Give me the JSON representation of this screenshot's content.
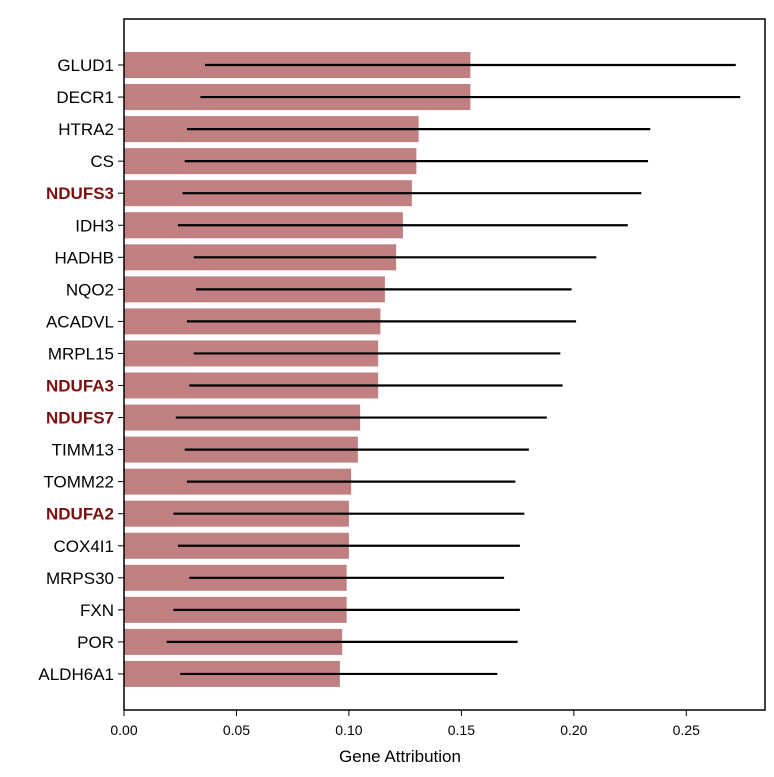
{
  "chart_data": {
    "type": "bar",
    "orientation": "horizontal",
    "title": "",
    "xlabel": "Gene Attribution",
    "ylabel": "",
    "xlim": [
      0,
      0.285
    ],
    "xticks": [
      "0.00",
      "0.05",
      "0.10",
      "0.15",
      "0.20",
      "0.25"
    ],
    "tick_values": [
      0,
      0.05,
      0.1,
      0.15,
      0.2,
      0.25
    ],
    "grid": false,
    "bar_color": "#c07f80",
    "highlight_label_color": "#7a1010",
    "default_label_color": "#000000",
    "bars": [
      {
        "label": "GLUD1",
        "value": 0.154,
        "err_low": 0.036,
        "err_high": 0.272,
        "highlight": false
      },
      {
        "label": "DECR1",
        "value": 0.154,
        "err_low": 0.034,
        "err_high": 0.274,
        "highlight": false
      },
      {
        "label": "HTRA2",
        "value": 0.131,
        "err_low": 0.028,
        "err_high": 0.234,
        "highlight": false
      },
      {
        "label": "CS",
        "value": 0.13,
        "err_low": 0.027,
        "err_high": 0.233,
        "highlight": false
      },
      {
        "label": "NDUFS3",
        "value": 0.128,
        "err_low": 0.026,
        "err_high": 0.23,
        "highlight": true
      },
      {
        "label": "IDH3",
        "value": 0.124,
        "err_low": 0.024,
        "err_high": 0.224,
        "highlight": false
      },
      {
        "label": "HADHB",
        "value": 0.121,
        "err_low": 0.031,
        "err_high": 0.21,
        "highlight": false
      },
      {
        "label": "NQO2",
        "value": 0.116,
        "err_low": 0.032,
        "err_high": 0.199,
        "highlight": false
      },
      {
        "label": "ACADVL",
        "value": 0.114,
        "err_low": 0.028,
        "err_high": 0.201,
        "highlight": false
      },
      {
        "label": "MRPL15",
        "value": 0.113,
        "err_low": 0.031,
        "err_high": 0.194,
        "highlight": false
      },
      {
        "label": "NDUFA3",
        "value": 0.113,
        "err_low": 0.029,
        "err_high": 0.195,
        "highlight": true
      },
      {
        "label": "NDUFS7",
        "value": 0.105,
        "err_low": 0.023,
        "err_high": 0.188,
        "highlight": true
      },
      {
        "label": "TIMM13",
        "value": 0.104,
        "err_low": 0.027,
        "err_high": 0.18,
        "highlight": false
      },
      {
        "label": "TOMM22",
        "value": 0.101,
        "err_low": 0.028,
        "err_high": 0.174,
        "highlight": false
      },
      {
        "label": "NDUFA2",
        "value": 0.1,
        "err_low": 0.022,
        "err_high": 0.178,
        "highlight": true
      },
      {
        "label": "COX4I1",
        "value": 0.1,
        "err_low": 0.024,
        "err_high": 0.176,
        "highlight": false
      },
      {
        "label": "MRPS30",
        "value": 0.099,
        "err_low": 0.029,
        "err_high": 0.169,
        "highlight": false
      },
      {
        "label": "FXN",
        "value": 0.099,
        "err_low": 0.022,
        "err_high": 0.176,
        "highlight": false
      },
      {
        "label": "POR",
        "value": 0.097,
        "err_low": 0.019,
        "err_high": 0.175,
        "highlight": false
      },
      {
        "label": "ALDH6A1",
        "value": 0.096,
        "err_low": 0.025,
        "err_high": 0.166,
        "highlight": false
      }
    ]
  }
}
